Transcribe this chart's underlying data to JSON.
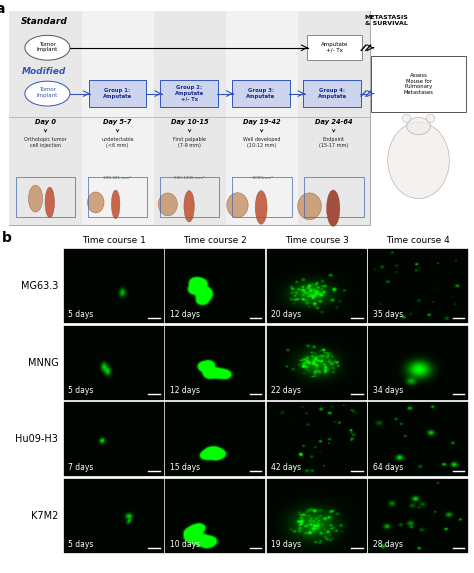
{
  "panel_a": {
    "label": "a",
    "standard_label": "Standard",
    "modified_label": "Modified",
    "groups": [
      "Group 1:\nAmputate",
      "Group 2:\nAmputate\n+/- Tx",
      "Group 3:\nAmputate",
      "Group 4:\nAmputate"
    ],
    "amputate_tx_label": "Amputate\n+/- Tx",
    "metastasis_label": "METASTASIS\n& SURVIVAL",
    "assess_label": "Assess\nMouse for\nPulmonary\nMetastases",
    "day_labels": [
      "Day 0",
      "Day 5-7",
      "Day 10-15",
      "Day 19-42",
      "Day 24-64"
    ],
    "stage_labels": [
      "Orthotopic tumor\ncell injection",
      "undetectable\n(<6 mm)",
      "First palpable\n(7-9 mm)",
      "Well developed\n(10-12 mm)",
      "Endpoint\n(15-17 mm)"
    ],
    "meas_labels": [
      "",
      "180-321 mm³",
      "606-1436 mm³",
      "~2000mm³",
      ""
    ]
  },
  "panel_b": {
    "label": "b",
    "col_headers": [
      "Time course 1",
      "Time course 2",
      "Time course 3",
      "Time course 4"
    ],
    "row_labels": [
      "MG63.3",
      "MNNG",
      "Hu09-H3",
      "K7M2"
    ],
    "day_labels": [
      [
        "5 days",
        "12 days",
        "20 days",
        "35 days"
      ],
      [
        "5 days",
        "12 days",
        "22 days",
        "34 days"
      ],
      [
        "7 days",
        "15 days",
        "42 days",
        "64 days"
      ],
      [
        "5 days",
        "10 days",
        "19 days",
        "28 days"
      ]
    ]
  }
}
